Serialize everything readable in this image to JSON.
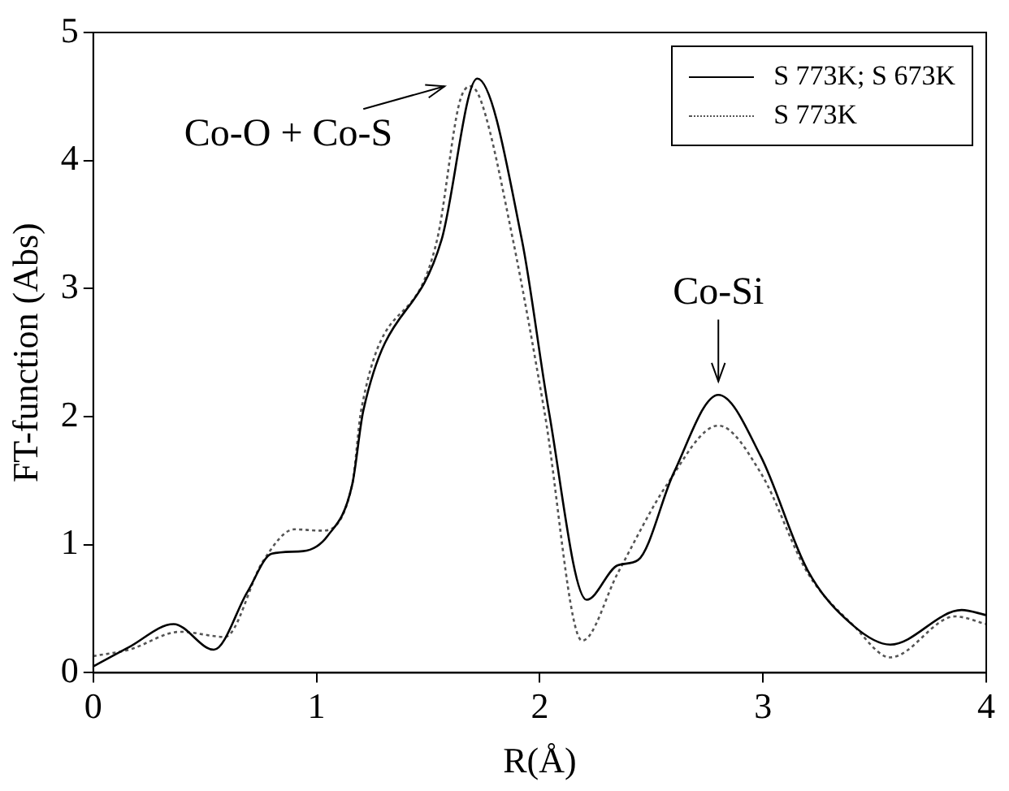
{
  "chart_data": {
    "type": "line",
    "xlabel": "R(Å)",
    "ylabel": "FT-function (Abs)",
    "xlim": [
      0,
      4
    ],
    "xticks": [
      0,
      1,
      2,
      3,
      4
    ],
    "ylim": [
      0,
      5
    ],
    "yticks": [
      0,
      1,
      2,
      3,
      4,
      5
    ],
    "grid": false,
    "legend": "top right",
    "marker": "none",
    "series": [
      {
        "name": "S 773K; S 673K",
        "color": "#000000",
        "line_style": "solid",
        "x": [
          0,
          0.16,
          0.36,
          0.54,
          0.69,
          0.8,
          0.94,
          1.05,
          1.16,
          1.21,
          1.56,
          1.72,
          1.92,
          2.04,
          2.21,
          2.35,
          2.44,
          2.6,
          2.8,
          2.99,
          3.2,
          3.41,
          3.57,
          3.89,
          4
        ],
        "values": [
          0.05,
          0.2,
          0.38,
          0.18,
          0.63,
          0.93,
          0.95,
          1.07,
          1.47,
          2.05,
          3.38,
          4.64,
          3.38,
          2.05,
          0.57,
          0.84,
          0.88,
          1.56,
          2.17,
          1.69,
          0.8,
          0.36,
          0.22,
          0.49,
          0.45
        ]
      },
      {
        "name": "S 773K",
        "color": "#555555",
        "line_style": "dotted",
        "x": [
          0,
          0.16,
          0.39,
          0.59,
          0.76,
          0.9,
          1.02,
          1.16,
          1.2,
          1.54,
          1.64,
          1.69,
          1.74,
          1.88,
          2.02,
          2.19,
          2.35,
          2.57,
          2.8,
          2.99,
          3.2,
          3.41,
          3.57,
          3.86,
          4
        ],
        "values": [
          0.13,
          0.18,
          0.32,
          0.28,
          0.87,
          1.12,
          1.11,
          1.47,
          2.05,
          3.38,
          4.45,
          4.58,
          4.45,
          3.38,
          2.05,
          0.25,
          0.78,
          1.47,
          1.93,
          1.56,
          0.78,
          0.36,
          0.12,
          0.44,
          0.38
        ]
      }
    ],
    "annotations": [
      {
        "text": "Co-O + Co-S",
        "x": 1.69,
        "y": 4.58
      },
      {
        "text": "Co-Si",
        "x": 2.8,
        "y": 2.2
      }
    ]
  }
}
